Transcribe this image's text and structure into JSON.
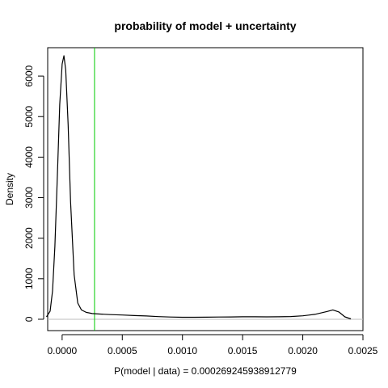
{
  "chart_data": {
    "type": "line",
    "title": "probability of model + uncertainty",
    "xlabel": "P(model | data) =  0.000269245938912779",
    "ylabel": "Density",
    "xlim": [
      -0.00012,
      0.0025
    ],
    "ylim": [
      -280,
      6700
    ],
    "x_ticks": [
      0.0,
      0.0005,
      0.001,
      0.0015,
      0.002,
      0.0025
    ],
    "x_tick_labels": [
      "0.0000",
      "0.0005",
      "0.0010",
      "0.0015",
      "0.0020",
      "0.0025"
    ],
    "y_ticks": [
      0,
      1000,
      2000,
      3000,
      4000,
      5000,
      6000
    ],
    "y_tick_labels": [
      "0",
      "1000",
      "2000",
      "3000",
      "4000",
      "5000",
      "6000"
    ],
    "grid": false,
    "zero_line": {
      "y": 0,
      "color": "#bebebe"
    },
    "reference_line": {
      "x": 0.000269245938912779,
      "color": "#00cc00"
    },
    "series": [
      {
        "color": "#000000",
        "x": [
          -0.00013,
          -0.0001,
          -8e-05,
          -6e-05,
          -4e-05,
          -2e-05,
          0.0,
          1.5e-05,
          3e-05,
          5e-05,
          7e-05,
          0.0001,
          0.00013,
          0.00016,
          0.0002,
          0.00025,
          0.0003,
          0.0004,
          0.0005,
          0.0006,
          0.0007,
          0.0008,
          0.0009,
          0.001,
          0.0011,
          0.0012,
          0.0013,
          0.0014,
          0.0015,
          0.0016,
          0.0017,
          0.0018,
          0.0019,
          0.002,
          0.0021,
          0.0022,
          0.00225,
          0.0023,
          0.00235,
          0.0024
        ],
        "y": [
          60,
          200,
          700,
          1800,
          3500,
          5300,
          6300,
          6500,
          6150,
          4800,
          2900,
          1100,
          400,
          230,
          170,
          140,
          130,
          115,
          105,
          90,
          80,
          65,
          55,
          50,
          50,
          52,
          55,
          58,
          62,
          62,
          60,
          62,
          68,
          85,
          120,
          190,
          230,
          180,
          60,
          10
        ]
      }
    ]
  }
}
